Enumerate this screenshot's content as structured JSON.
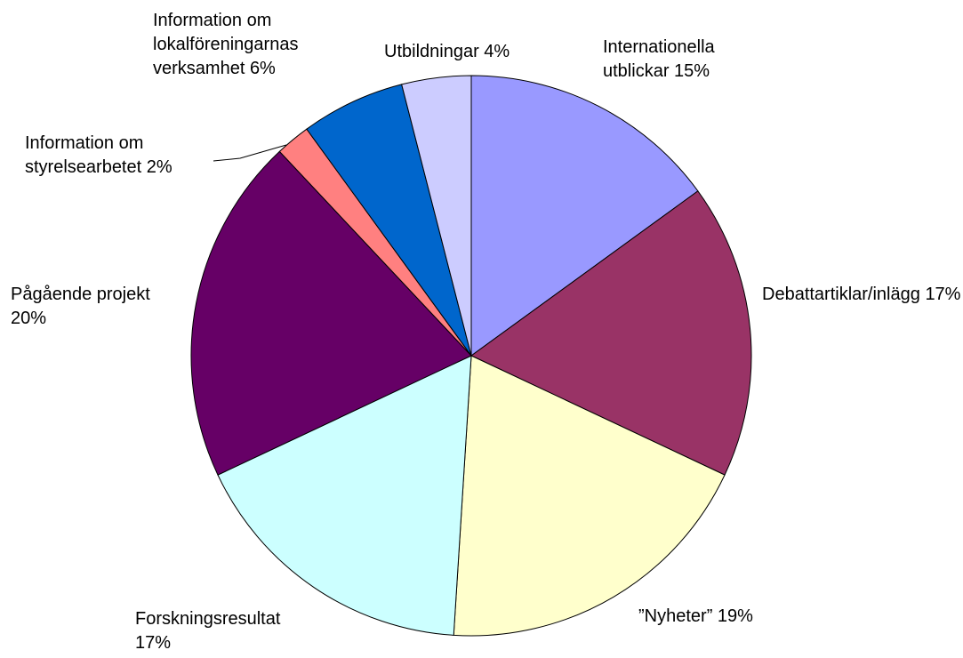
{
  "chart_data": {
    "type": "pie",
    "categories": [
      "Internationella utblickar",
      "Debattartiklar/inlägg",
      "”Nyheter”",
      "Forskningsresultat",
      "Pågående projekt",
      "Information om styrelsearbetet",
      "Information om lokalföreningarnas verksamhet",
      "Utbildningar"
    ],
    "values": [
      15,
      17,
      19,
      17,
      20,
      2,
      6,
      4
    ],
    "value_labels": [
      "15%",
      "17%",
      "19%",
      "17%",
      "20%",
      "2%",
      "6%",
      "4%"
    ],
    "colors": [
      "#9999ff",
      "#993366",
      "#ffffcc",
      "#ccffff",
      "#660066",
      "#ff8080",
      "#0066cc",
      "#ccccff"
    ]
  }
}
